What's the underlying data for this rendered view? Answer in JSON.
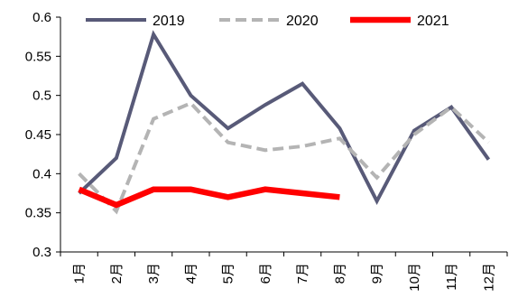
{
  "chart_data": {
    "type": "line",
    "title": "",
    "xlabel": "",
    "ylabel": "",
    "ylim": [
      0.3,
      0.6
    ],
    "yticks": [
      "0.3",
      "0.35",
      "0.4",
      "0.45",
      "0.5",
      "0.55",
      "0.6"
    ],
    "categories": [
      "1月",
      "2月",
      "3月",
      "4月",
      "5月",
      "6月",
      "7月",
      "8月",
      "9月",
      "10月",
      "11月",
      "12月"
    ],
    "grid": false,
    "legend_position": "top",
    "series": [
      {
        "name": "2019",
        "color": "#585a78",
        "style": "solid",
        "values": [
          0.375,
          0.42,
          0.578,
          0.5,
          0.458,
          0.488,
          0.515,
          0.458,
          0.365,
          0.455,
          0.485,
          0.418
        ]
      },
      {
        "name": "2020",
        "color": "#b4b4b4",
        "style": "dashed",
        "values": [
          0.4,
          0.352,
          0.47,
          0.49,
          0.44,
          0.43,
          0.435,
          0.445,
          0.395,
          0.45,
          0.485,
          0.44
        ]
      },
      {
        "name": "2021",
        "color": "#ff0000",
        "style": "solid-thick",
        "values": [
          0.38,
          0.36,
          0.38,
          0.38,
          0.37,
          0.38,
          0.375,
          0.37,
          null,
          null,
          null,
          null
        ]
      }
    ]
  }
}
